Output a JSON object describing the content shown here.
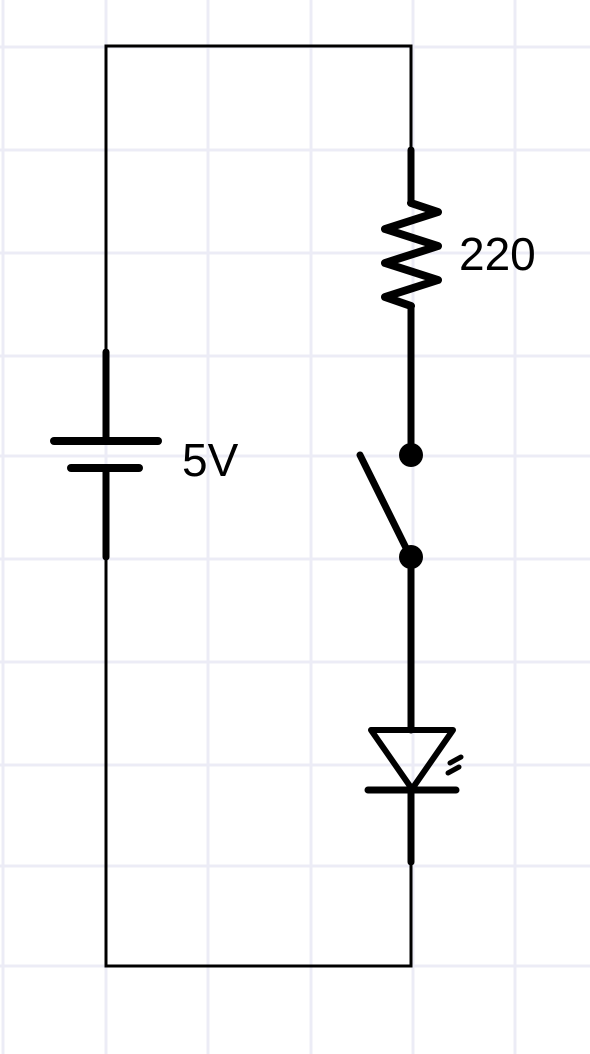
{
  "colors": {
    "background": "#ffffff",
    "grid": "#ececf6",
    "wire": "#000000"
  },
  "components": {
    "battery": {
      "label": "5V"
    },
    "resistor": {
      "label": "220"
    },
    "switch": {
      "state": "open"
    },
    "led": {
      "kind": "light-emitting-diode"
    }
  }
}
